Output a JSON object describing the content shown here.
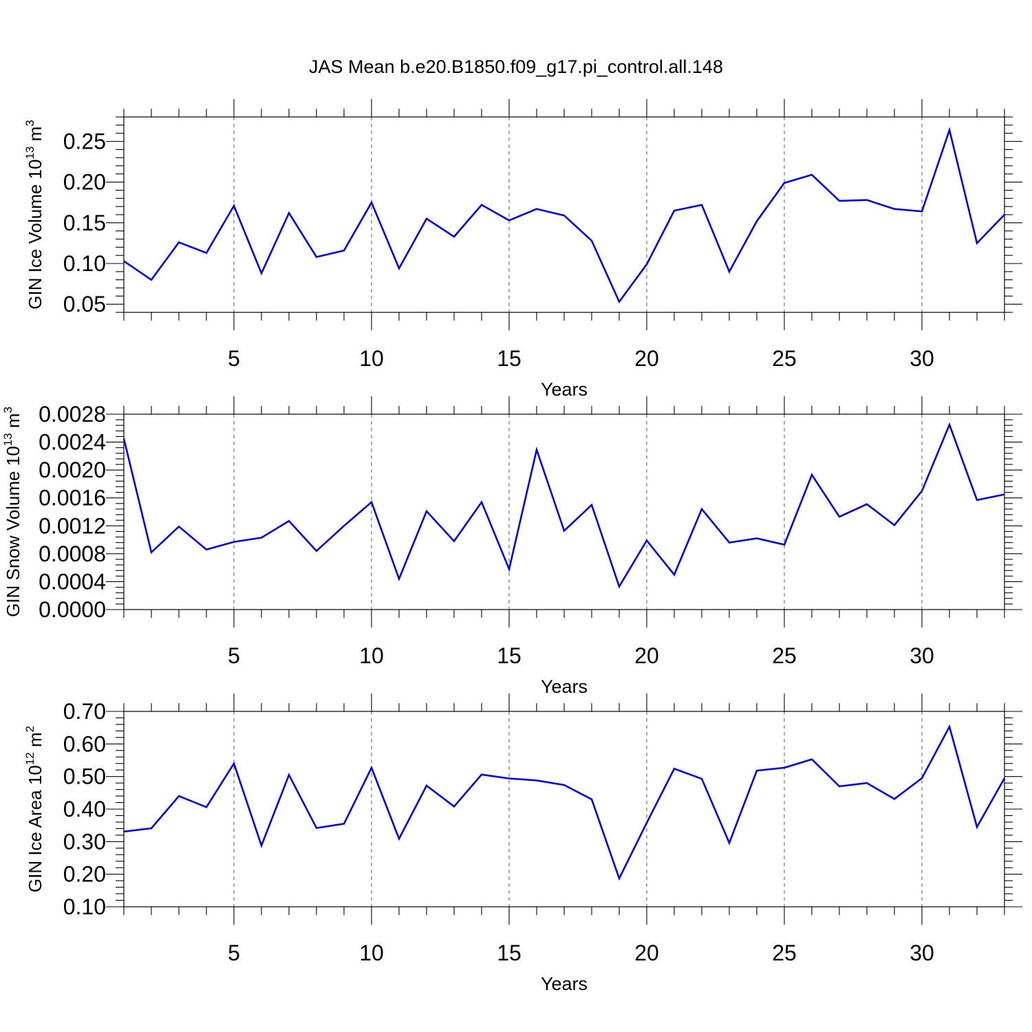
{
  "figure_title": "JAS Mean b.e20.B1850.f09_g17.pi_control.all.148",
  "chart_data": [
    {
      "type": "line",
      "ylabel": "GIN Ice Volume 10",
      "ylabel_sup": "13",
      "ylabel_unit": " m",
      "ylabel_unit_sup": "3",
      "xlabel": "Years",
      "xlim": [
        1,
        33
      ],
      "ylim": [
        0.04,
        0.28
      ],
      "yticks": [
        0.05,
        0.1,
        0.15,
        0.2,
        0.25
      ],
      "ytick_labels": [
        "0.05",
        "0.10",
        "0.15",
        "0.20",
        "0.25"
      ],
      "xticks": [
        5,
        10,
        15,
        20,
        25,
        30
      ],
      "xtick_labels": [
        "5",
        "10",
        "15",
        "20",
        "25",
        "30"
      ],
      "grid": "vertical-dashed",
      "line_color": "#0000ee",
      "x": [
        1,
        2,
        3,
        4,
        5,
        6,
        7,
        8,
        9,
        10,
        11,
        12,
        13,
        14,
        15,
        16,
        17,
        18,
        19,
        20,
        21,
        22,
        23,
        24,
        25,
        26,
        27,
        28,
        29,
        30,
        31,
        32,
        33
      ],
      "values": [
        0.103,
        0.08,
        0.126,
        0.113,
        0.171,
        0.088,
        0.162,
        0.108,
        0.116,
        0.175,
        0.094,
        0.155,
        0.133,
        0.172,
        0.153,
        0.167,
        0.159,
        0.128,
        0.053,
        0.099,
        0.165,
        0.172,
        0.09,
        0.152,
        0.199,
        0.209,
        0.177,
        0.178,
        0.167,
        0.164,
        0.264,
        0.125,
        0.16
      ]
    },
    {
      "type": "line",
      "ylabel": "GIN Snow Volume 10",
      "ylabel_sup": "13",
      "ylabel_unit": " m",
      "ylabel_unit_sup": "3",
      "xlabel": "Years",
      "xlim": [
        1,
        33
      ],
      "ylim": [
        0.0,
        0.0028
      ],
      "yticks": [
        0.0,
        0.0004,
        0.0008,
        0.0012,
        0.0016,
        0.002,
        0.0024,
        0.0028
      ],
      "ytick_labels": [
        "0.0000",
        "0.0004",
        "0.0008",
        "0.0012",
        "0.0016",
        "0.0020",
        "0.0024",
        "0.0028"
      ],
      "xticks": [
        5,
        10,
        15,
        20,
        25,
        30
      ],
      "xtick_labels": [
        "5",
        "10",
        "15",
        "20",
        "25",
        "30"
      ],
      "grid": "vertical-dashed",
      "line_color": "#0000ee",
      "x": [
        1,
        2,
        3,
        4,
        5,
        6,
        7,
        8,
        9,
        10,
        11,
        12,
        13,
        14,
        15,
        16,
        17,
        18,
        19,
        20,
        21,
        22,
        23,
        24,
        25,
        26,
        27,
        28,
        29,
        30,
        31,
        32,
        33
      ],
      "values": [
        0.00245,
        0.00082,
        0.00119,
        0.00086,
        0.00097,
        0.00103,
        0.00127,
        0.00084,
        0.0012,
        0.00154,
        0.00044,
        0.00141,
        0.00098,
        0.00154,
        0.00058,
        0.00229,
        0.00113,
        0.0015,
        0.00033,
        0.00099,
        0.0005,
        0.00144,
        0.00096,
        0.00102,
        0.00093,
        0.00193,
        0.00133,
        0.00151,
        0.00121,
        0.0017,
        0.00265,
        0.00157,
        0.00165
      ]
    },
    {
      "type": "line",
      "ylabel": "GIN Ice Area 10",
      "ylabel_sup": "12",
      "ylabel_unit": " m",
      "ylabel_unit_sup": "2",
      "xlabel": "Years",
      "xlim": [
        1,
        33
      ],
      "ylim": [
        0.1,
        0.7
      ],
      "yticks": [
        0.1,
        0.2,
        0.3,
        0.4,
        0.5,
        0.6,
        0.7
      ],
      "ytick_labels": [
        "0.10",
        "0.20",
        "0.30",
        "0.40",
        "0.50",
        "0.60",
        "0.70"
      ],
      "xticks": [
        5,
        10,
        15,
        20,
        25,
        30
      ],
      "xtick_labels": [
        "5",
        "10",
        "15",
        "20",
        "25",
        "30"
      ],
      "grid": "vertical-dashed",
      "line_color": "#0000ee",
      "x": [
        1,
        2,
        3,
        4,
        5,
        6,
        7,
        8,
        9,
        10,
        11,
        12,
        13,
        14,
        15,
        16,
        17,
        18,
        19,
        20,
        21,
        22,
        23,
        24,
        25,
        26,
        27,
        28,
        29,
        30,
        31,
        32,
        33
      ],
      "values": [
        0.331,
        0.341,
        0.44,
        0.406,
        0.54,
        0.288,
        0.505,
        0.342,
        0.355,
        0.527,
        0.309,
        0.472,
        0.408,
        0.506,
        0.494,
        0.488,
        0.474,
        0.43,
        0.187,
        0.358,
        0.524,
        0.493,
        0.296,
        0.518,
        0.527,
        0.553,
        0.47,
        0.48,
        0.431,
        0.495,
        0.653,
        0.345,
        0.495
      ]
    }
  ]
}
